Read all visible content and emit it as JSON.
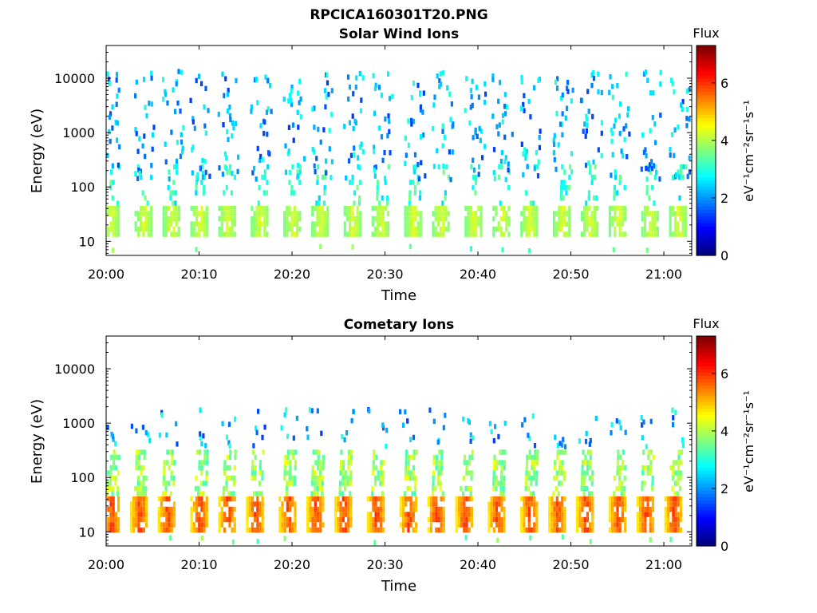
{
  "figure_title": "RPCICA160301T20.PNG",
  "colormap": [
    "#00007f",
    "#0000ff",
    "#007fff",
    "#00ffff",
    "#7fff7f",
    "#ffff00",
    "#ff7f00",
    "#ff0000",
    "#7f0000"
  ],
  "chart_data": [
    {
      "type": "heatmap",
      "title": "Solar Wind Ions",
      "xlabel": "Time",
      "ylabel": "Energy (eV)",
      "xlim": [
        "20:00",
        "21:03"
      ],
      "xticks": [
        "20:00",
        "20:10",
        "20:20",
        "20:30",
        "20:40",
        "20:50",
        "21:00"
      ],
      "ylim": [
        5.5,
        40000
      ],
      "yscale": "log",
      "yticks": [
        "10",
        "100",
        "1000",
        "10000"
      ],
      "colorbar": {
        "label": "Flux",
        "unit": "eV⁻¹cm⁻²sr⁻¹s⁻¹",
        "range": [
          0,
          7.3
        ],
        "ticks": [
          "0",
          "2",
          "4",
          "6"
        ]
      },
      "bursts_minutes": [
        0.5,
        4,
        7,
        10,
        13,
        16.5,
        20,
        23,
        26.5,
        29.5,
        33,
        36,
        39.5,
        42.5,
        45.5,
        49,
        52,
        55,
        58.5,
        61.5
      ],
      "low_band_eV": [
        14,
        45
      ],
      "low_band_flux": [
        3.5,
        4.5
      ]
    },
    {
      "type": "heatmap",
      "title": "Cometary Ions",
      "xlabel": "Time",
      "ylabel": "Energy (eV)",
      "xlim": [
        "20:00",
        "21:03"
      ],
      "xticks": [
        "20:00",
        "20:10",
        "20:20",
        "20:30",
        "20:40",
        "20:50",
        "21:00"
      ],
      "ylim": [
        5.5,
        40000
      ],
      "yscale": "log",
      "yticks": [
        "10",
        "100",
        "1000",
        "10000"
      ],
      "colorbar": {
        "label": "Flux",
        "unit": "eV⁻¹cm⁻²sr⁻¹s⁻¹",
        "range": [
          0,
          7.3
        ],
        "ticks": [
          "0",
          "2",
          "4",
          "6"
        ]
      },
      "bursts_minutes": [
        0.5,
        3.5,
        6.5,
        10,
        13,
        16,
        19.5,
        22.5,
        25.5,
        29,
        32.5,
        35.5,
        38.5,
        42,
        45.5,
        48.5,
        51.5,
        55,
        58,
        61
      ],
      "low_band_eV": [
        12,
        45
      ],
      "low_band_flux": [
        4.5,
        6.3
      ]
    }
  ]
}
